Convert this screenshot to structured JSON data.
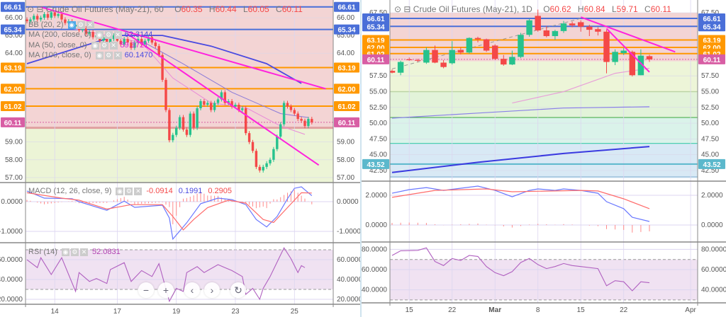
{
  "colors": {
    "up": "#26c28d",
    "down": "#f44848",
    "blue_level": "#4a6fd8",
    "orange_level": "#ff9800",
    "price_tag": "#d85ea4",
    "teal_level": "#5bb8cc",
    "trendline": "#ff22dd",
    "macd_line": "#6a78ff",
    "signal_line": "#ff6b6b",
    "rsi_line": "#b060c0"
  },
  "zoom_controls": [
    {
      "name": "zoom-out",
      "glyph": "−"
    },
    {
      "name": "zoom-in",
      "glyph": "+"
    },
    {
      "name": "scroll-left",
      "glyph": "‹"
    },
    {
      "name": "scroll-right",
      "glyph": "›"
    },
    {
      "name": "reset",
      "glyph": "↻"
    }
  ],
  "chart_data": [
    {
      "type": "candlestick",
      "title": "Crude Oil Futures (May-21), 60",
      "ohlc": {
        "O": "O",
        "O_val": "60.35",
        "H": "H",
        "H_val": "60.44",
        "L": "L",
        "L_val": "60.05",
        "C": "C",
        "C_val": "60.11"
      },
      "indicators": [
        {
          "label": "BB (20, 2)",
          "value": ""
        },
        {
          "label": "MA (200, close, 0)",
          "value": "62.3144",
          "color": "#4a4ae0"
        },
        {
          "label": "MA (50, close, 0)",
          "value": "59.3721",
          "color": "#e020e0"
        },
        {
          "label": "MA (100, close, 0)",
          "value": "60.1470",
          "color": "#4a4ae0"
        }
      ],
      "price_ticks": [
        "66.00",
        "65.00",
        "64.00",
        "59.00",
        "58.00",
        "57.00"
      ],
      "price_tick_values": [
        66,
        65,
        64,
        59,
        58,
        57
      ],
      "levels": [
        {
          "label": "66.61",
          "value": 66.61,
          "kind": "blue"
        },
        {
          "label": "65.34",
          "value": 65.34,
          "kind": "blue"
        },
        {
          "label": "63.19",
          "value": 63.19,
          "kind": "orange"
        },
        {
          "label": "62.00",
          "value": 62.0,
          "kind": "orange"
        },
        {
          "label": "61.02",
          "value": 61.02,
          "kind": "orange"
        },
        {
          "label": "60.11",
          "value": 60.11,
          "kind": "price"
        }
      ],
      "zone_split": 59.8,
      "closes": [
        65.8,
        65.9,
        66.1,
        65.9,
        66.0,
        66.2,
        66.0,
        66.3,
        66.1,
        66.2,
        65.9,
        65.7,
        65.8,
        65.5,
        65.6,
        65.3,
        65.4,
        65.1,
        65.2,
        64.9,
        65.0,
        64.7,
        64.9,
        64.6,
        64.8,
        65.0,
        64.7,
        64.5,
        64.8,
        64.6,
        64.3,
        64.6,
        64.8,
        64.5,
        64.7,
        64.9,
        64.6,
        64.4,
        63.9,
        62.5,
        60.8,
        59.1,
        59.4,
        59.8,
        60.4,
        59.7,
        59.4,
        60.6,
        59.8,
        60.9,
        61.3,
        61.1,
        61.2,
        60.8,
        61.2,
        61.4,
        61.8,
        61.2,
        61.3,
        61.0,
        61.1,
        60.8,
        60.9,
        59.5,
        59.0,
        58.5,
        57.6,
        57.4,
        57.6,
        57.8,
        58.0,
        58.6,
        59.3,
        60.0,
        61.2,
        61.0,
        60.8,
        60.6,
        60.3,
        60.2,
        59.9,
        60.3,
        60.11
      ],
      "ma200": [
        [
          0,
          63.41
        ],
        [
          26,
          65.0
        ],
        [
          39,
          65.0
        ],
        [
          53,
          64.4
        ],
        [
          69,
          63.41
        ],
        [
          79,
          62.3
        ]
      ],
      "ma100": [
        [
          33,
          64.69
        ],
        [
          45,
          63.4
        ],
        [
          59,
          61.8
        ],
        [
          73,
          60.6
        ],
        [
          81,
          60.38
        ]
      ],
      "ma50": [
        [
          13,
          65.4
        ],
        [
          33,
          64.6
        ],
        [
          42,
          62.6
        ],
        [
          53,
          61.2
        ],
        [
          63,
          60.94
        ],
        [
          73,
          59.9
        ],
        [
          80,
          59.43
        ]
      ],
      "trendlines": [
        [
          [
            4,
            66.6
          ],
          [
            86,
            62.0
          ]
        ],
        [
          [
            29,
            65.08
          ],
          [
            84,
            57.7
          ]
        ]
      ],
      "x_ticks": [
        "14",
        "17",
        "19",
        "23",
        "25"
      ],
      "x_tick_bars": [
        8,
        26,
        43,
        60,
        77
      ],
      "macd": {
        "label": "MACD (12, 26, close, 9)",
        "hist_value": "-0.0914",
        "macd_value": "0.1991",
        "signal_value": "0.2905",
        "ticks": [
          "0.0000",
          "-1.0000"
        ],
        "tick_values": [
          0,
          -1
        ],
        "macd_line": [
          [
            0,
            0.36
          ],
          [
            5,
            0.12
          ],
          [
            13,
            0.1
          ],
          [
            15,
            0
          ],
          [
            23,
            -0.29
          ],
          [
            28,
            0.02
          ],
          [
            31,
            -0.19
          ],
          [
            39,
            -0.12
          ],
          [
            41,
            -0.55
          ],
          [
            42,
            -1.26
          ],
          [
            46,
            -0.71
          ],
          [
            50,
            -0.07
          ],
          [
            55,
            0.12
          ],
          [
            59,
            0.07
          ],
          [
            63,
            -0.1
          ],
          [
            66,
            -0.6
          ],
          [
            69,
            -0.85
          ],
          [
            72,
            -0.5
          ],
          [
            75,
            0.1
          ],
          [
            77,
            0.45
          ],
          [
            79,
            0.5
          ],
          [
            82,
            0.2
          ]
        ],
        "signal_line": [
          [
            0,
            0.3
          ],
          [
            10,
            0.12
          ],
          [
            15,
            0.05
          ],
          [
            23,
            -0.25
          ],
          [
            30,
            -0.1
          ],
          [
            39,
            -0.1
          ],
          [
            42,
            -0.5
          ],
          [
            45,
            -0.95
          ],
          [
            48,
            -0.6
          ],
          [
            52,
            -0.2
          ],
          [
            58,
            0.05
          ],
          [
            63,
            -0.05
          ],
          [
            68,
            -0.6
          ],
          [
            71,
            -0.7
          ],
          [
            75,
            -0.2
          ],
          [
            79,
            0.3
          ],
          [
            82,
            0.29
          ]
        ]
      },
      "rsi": {
        "label": "RSI (14)",
        "value": "52.0831",
        "band": [
          30,
          70
        ],
        "ticks": [
          "60.0000",
          "40.0000",
          "20.0000"
        ],
        "tick_values": [
          60,
          40,
          20
        ],
        "line": [
          [
            0,
            60
          ],
          [
            3,
            52
          ],
          [
            4,
            62
          ],
          [
            7,
            45
          ],
          [
            10,
            62
          ],
          [
            14,
            28
          ],
          [
            15,
            47
          ],
          [
            18,
            38
          ],
          [
            20,
            41
          ],
          [
            23,
            36
          ],
          [
            24,
            50
          ],
          [
            28,
            57
          ],
          [
            30,
            38
          ],
          [
            33,
            49
          ],
          [
            36,
            43
          ],
          [
            38,
            56
          ],
          [
            41,
            18
          ],
          [
            43,
            31
          ],
          [
            45,
            28
          ],
          [
            46,
            47
          ],
          [
            49,
            53
          ],
          [
            51,
            47
          ],
          [
            55,
            55
          ],
          [
            57,
            52
          ],
          [
            59,
            49
          ],
          [
            62,
            43
          ],
          [
            63,
            25
          ],
          [
            65,
            31
          ],
          [
            67,
            20
          ],
          [
            68,
            31
          ],
          [
            70,
            43
          ],
          [
            74,
            72
          ],
          [
            76,
            61
          ],
          [
            78,
            47
          ],
          [
            79,
            54
          ],
          [
            80,
            52
          ]
        ]
      }
    },
    {
      "type": "candlestick",
      "title": "Crude Oil Futures (May-21), 1D",
      "ohlc": {
        "O": "O",
        "O_val": "60.62",
        "H": "H",
        "H_val": "60.84",
        "L": "L",
        "L_val": "59.71",
        "C": "C",
        "C_val": "60.11"
      },
      "price_ticks": [
        "67.50",
        "57.50",
        "55.00",
        "52.50",
        "50.00",
        "47.50",
        "45.00",
        "42.50"
      ],
      "price_tick_values": [
        67.5,
        57.5,
        55,
        52.5,
        50,
        47.5,
        45,
        42.5
      ],
      "levels": [
        {
          "label": "66.61",
          "value": 66.61,
          "kind": "blue"
        },
        {
          "label": "65.34",
          "value": 65.34,
          "kind": "blue"
        },
        {
          "label": "63.19",
          "value": 63.19,
          "kind": "orange"
        },
        {
          "label": "62.00",
          "value": 62.0,
          "kind": "orange"
        },
        {
          "label": "61.02",
          "value": 61.02,
          "kind": "orange"
        },
        {
          "label": "60.11",
          "value": 60.11,
          "kind": "price"
        },
        {
          "label": "43.52",
          "value": 43.52,
          "kind": "teal"
        }
      ],
      "zones": [
        [
          67.5,
          59.8,
          "#f3d4d4"
        ],
        [
          59.8,
          55.0,
          "#edf5d8"
        ],
        [
          55.0,
          50.9,
          "#e2f3d9"
        ],
        [
          50.9,
          46.8,
          "#daf3ea"
        ],
        [
          46.8,
          41.3,
          "#d8e9f5"
        ]
      ],
      "zone_lines": [
        [
          55.0,
          "#9ccc65"
        ],
        [
          50.9,
          "#4caf50"
        ],
        [
          46.8,
          "#4dd0b0"
        ],
        [
          41.5,
          "#8fb8d8"
        ]
      ],
      "candles": [
        [
          58.3,
          58.5,
          57.9,
          58.0
        ],
        [
          58.0,
          59.9,
          57.6,
          59.7
        ],
        [
          60.1,
          60.4,
          59.9,
          60.0
        ],
        [
          60.0,
          60.2,
          59.7,
          59.9
        ],
        [
          59.6,
          62.0,
          59.4,
          61.6
        ],
        [
          61.6,
          62.3,
          59.5,
          59.6
        ],
        [
          59.6,
          60.0,
          58.7,
          58.9
        ],
        [
          59.5,
          63.0,
          59.3,
          61.6
        ],
        [
          61.6,
          62.0,
          60.9,
          61.2
        ],
        [
          61.2,
          63.6,
          61.0,
          63.5
        ],
        [
          63.5,
          63.7,
          62.8,
          63.3
        ],
        [
          63.3,
          63.4,
          61.3,
          61.5
        ],
        [
          62.3,
          62.5,
          60.0,
          60.2
        ],
        [
          60.2,
          60.8,
          59.1,
          59.3
        ],
        [
          59.3,
          61.5,
          59.2,
          60.5
        ],
        [
          60.5,
          64.3,
          60.3,
          64.0
        ],
        [
          64.0,
          66.5,
          63.7,
          66.3
        ],
        [
          67.0,
          68.0,
          64.5,
          64.7
        ],
        [
          64.7,
          65.4,
          63.6,
          63.8
        ],
        [
          63.8,
          64.8,
          63.2,
          64.6
        ],
        [
          64.6,
          66.2,
          64.3,
          65.8
        ],
        [
          65.8,
          66.1,
          65.2,
          65.5
        ],
        [
          66.0,
          66.3,
          64.5,
          65.3
        ],
        [
          65.3,
          65.6,
          63.8,
          64.8
        ],
        [
          64.9,
          65.2,
          63.9,
          64.5
        ],
        [
          64.5,
          64.8,
          57.9,
          59.7
        ],
        [
          59.7,
          61.7,
          59.2,
          61.3
        ],
        [
          61.1,
          61.9,
          60.8,
          61.5
        ],
        [
          61.3,
          61.5,
          57.4,
          57.6
        ],
        [
          57.6,
          61.7,
          57.6,
          60.7
        ],
        [
          60.62,
          60.84,
          59.71,
          60.11
        ]
      ],
      "ma_pink": [
        [
          14,
          53.2
        ],
        [
          20,
          55.0
        ],
        [
          26,
          57.9
        ],
        [
          30,
          58.7
        ]
      ],
      "ma_purple": [
        [
          0,
          50.8
        ],
        [
          10,
          51.6
        ],
        [
          20,
          52.4
        ],
        [
          30,
          52.6
        ]
      ],
      "ma_blue": [
        [
          0,
          42.2
        ],
        [
          10,
          43.8
        ],
        [
          20,
          45.2
        ],
        [
          30,
          46.3
        ]
      ],
      "dashed_trend": [
        [
          0,
          58.6
        ],
        [
          22,
          66.6
        ]
      ],
      "trendlines": [
        [
          [
            22,
            66.8
          ],
          [
            33,
            61.3
          ]
        ],
        [
          [
            25,
            65.0
          ],
          [
            30,
            58.1
          ]
        ]
      ],
      "x_ticks": [
        "15",
        "22",
        "Mar",
        "8",
        "15",
        "22",
        "Apr"
      ],
      "x_tick_bars": [
        2.0,
        7.0,
        12.0,
        17.0,
        22.0,
        27.0,
        34.8
      ],
      "macd": {
        "ticks": [
          "2.0000",
          "0.0000"
        ],
        "tick_values": [
          2,
          0
        ],
        "macd_line": [
          [
            0,
            2.14
          ],
          [
            2,
            2.38
          ],
          [
            4,
            2.52
          ],
          [
            6,
            2.33
          ],
          [
            10,
            2.62
          ],
          [
            12,
            2.33
          ],
          [
            14,
            1.9
          ],
          [
            16,
            2.33
          ],
          [
            17,
            2.43
          ],
          [
            19,
            2.33
          ],
          [
            20,
            2.43
          ],
          [
            22,
            2.33
          ],
          [
            24,
            2.14
          ],
          [
            25,
            1.57
          ],
          [
            27,
            1.1
          ],
          [
            28,
            0.52
          ],
          [
            30,
            0.24
          ]
        ],
        "signal_line": [
          [
            0,
            1.86
          ],
          [
            5,
            2.33
          ],
          [
            11,
            2.43
          ],
          [
            14,
            2.24
          ],
          [
            22,
            2.33
          ],
          [
            24,
            2.29
          ],
          [
            27,
            1.76
          ],
          [
            30,
            1.1
          ]
        ]
      },
      "rsi": {
        "band": [
          30,
          70
        ],
        "ticks": [
          "80.0000",
          "60.0000",
          "40.0000"
        ],
        "tick_values": [
          80,
          60,
          40
        ],
        "line": [
          [
            0,
            74
          ],
          [
            1,
            78.6
          ],
          [
            3,
            79
          ],
          [
            4,
            81.5
          ],
          [
            5,
            68
          ],
          [
            6,
            64
          ],
          [
            7,
            71
          ],
          [
            8,
            69
          ],
          [
            9,
            74
          ],
          [
            10,
            73
          ],
          [
            11,
            63
          ],
          [
            12,
            57
          ],
          [
            13,
            54
          ],
          [
            14,
            58
          ],
          [
            15,
            67
          ],
          [
            16,
            71
          ],
          [
            17,
            65
          ],
          [
            18,
            61
          ],
          [
            19,
            63
          ],
          [
            20,
            66
          ],
          [
            21,
            64
          ],
          [
            22,
            63
          ],
          [
            24,
            61
          ],
          [
            25,
            44
          ],
          [
            26,
            49
          ],
          [
            27,
            48
          ],
          [
            28,
            39
          ],
          [
            29,
            48
          ],
          [
            30,
            47
          ]
        ]
      }
    }
  ]
}
